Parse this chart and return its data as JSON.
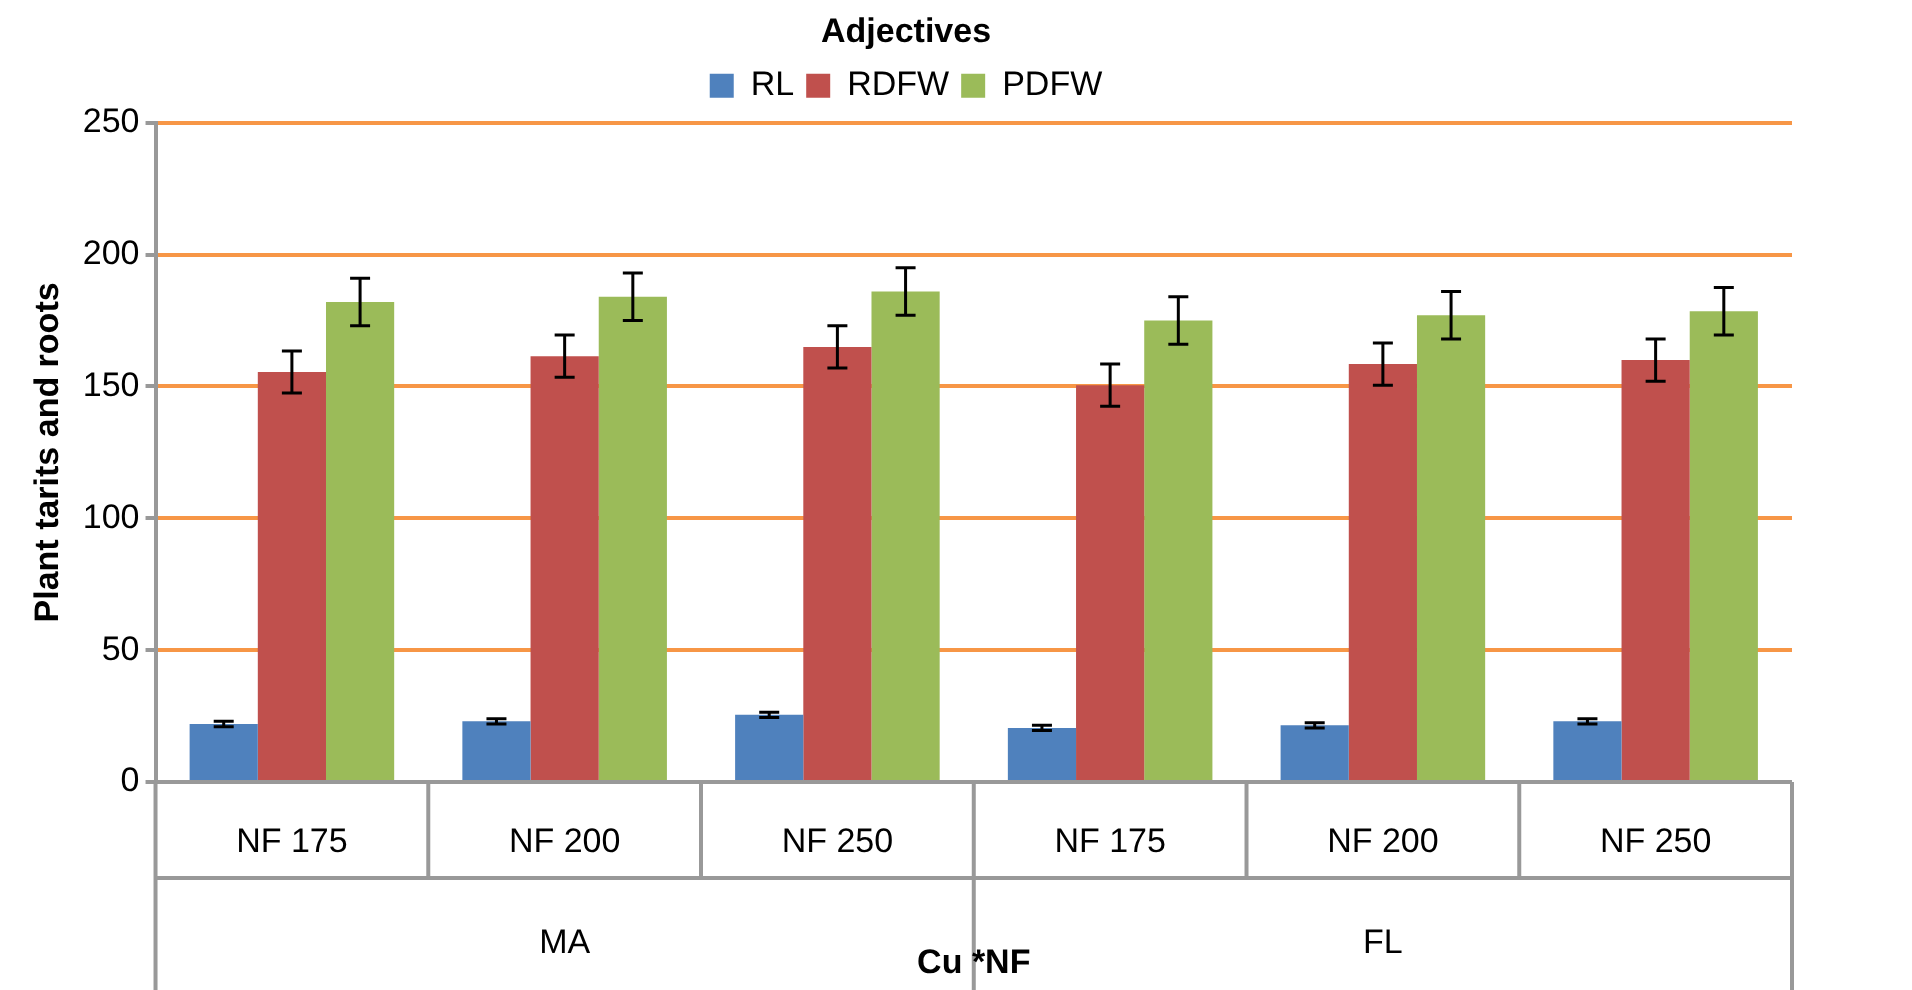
{
  "chart_data": {
    "type": "bar",
    "legend_title": "Adjectives",
    "ylabel": "Plant tarits and roots",
    "xlabel": "Cu *NF",
    "categories": [
      "NF 175",
      "NF 200",
      "NF 250",
      "NF 175",
      "NF 200",
      "NF 250"
    ],
    "annotations": [
      "MA",
      "FL"
    ],
    "series": [
      {
        "name": "RL",
        "color": "#4f81bd",
        "values": [
          22,
          23,
          25.5,
          20.5,
          21.5,
          23
        ],
        "errors": [
          1,
          1,
          1,
          1,
          1,
          1
        ]
      },
      {
        "name": "RDFW",
        "color": "#c0504d",
        "values": [
          155.5,
          161.5,
          165,
          150.5,
          158.5,
          160
        ],
        "errors": [
          8,
          8,
          8,
          8,
          8,
          8
        ]
      },
      {
        "name": "PDFW",
        "color": "#9bbb59",
        "values": [
          182,
          184,
          186,
          175,
          177,
          178.5
        ],
        "errors": [
          9,
          9,
          9,
          9,
          9,
          9
        ]
      }
    ],
    "ylim": [
      0,
      250
    ],
    "yticks": [
      0,
      50,
      100,
      150,
      200,
      250
    ],
    "grid": "y",
    "legend": "top"
  }
}
